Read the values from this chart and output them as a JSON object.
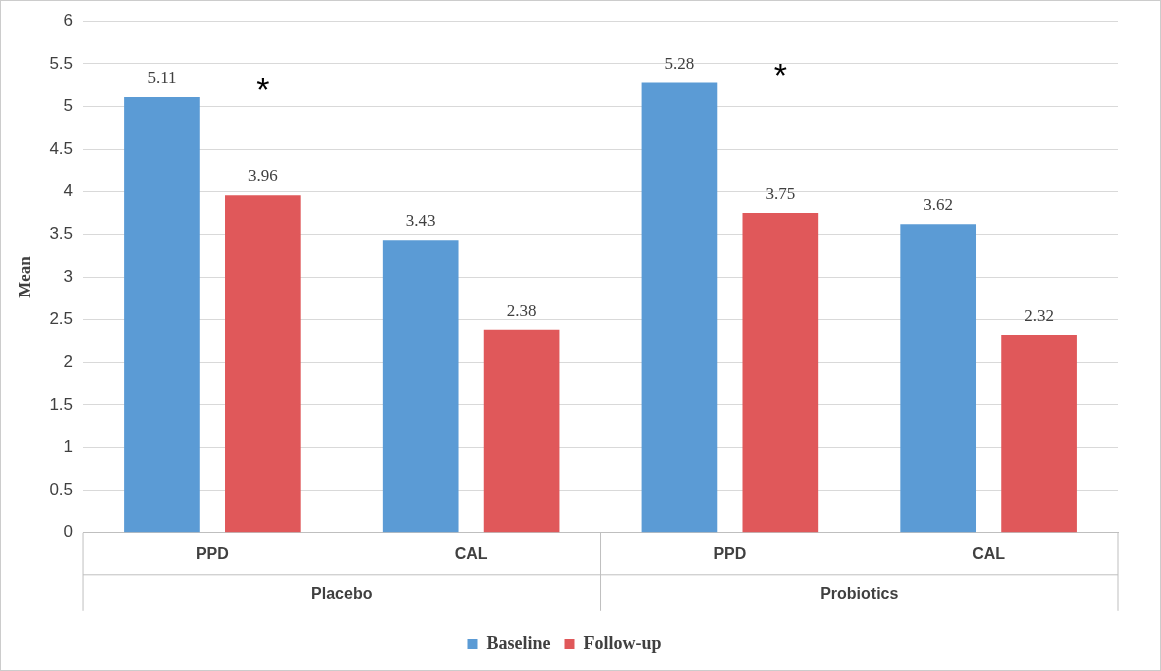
{
  "chart_data": {
    "type": "bar",
    "ylabel": "Mean",
    "categories": [
      "PPD",
      "CAL",
      "PPD",
      "CAL"
    ],
    "series": [
      {
        "name": "Baseline",
        "color": "#5b9bd5",
        "values": [
          5.11,
          3.43,
          5.28,
          3.62
        ]
      },
      {
        "name": "Follow-up",
        "color": "#e0585a",
        "values": [
          3.96,
          2.38,
          3.75,
          2.32
        ]
      }
    ],
    "annotations": [
      "*",
      "*",
      "Placebo",
      "Probiotics"
    ],
    "ylim": [
      0,
      6
    ],
    "yticks": [
      0,
      0.5,
      1,
      1.5,
      2,
      2.5,
      3,
      3.5,
      4,
      4.5,
      5,
      5.5,
      6
    ],
    "grid": "y",
    "data_labels": true,
    "legend": "bottom"
  }
}
